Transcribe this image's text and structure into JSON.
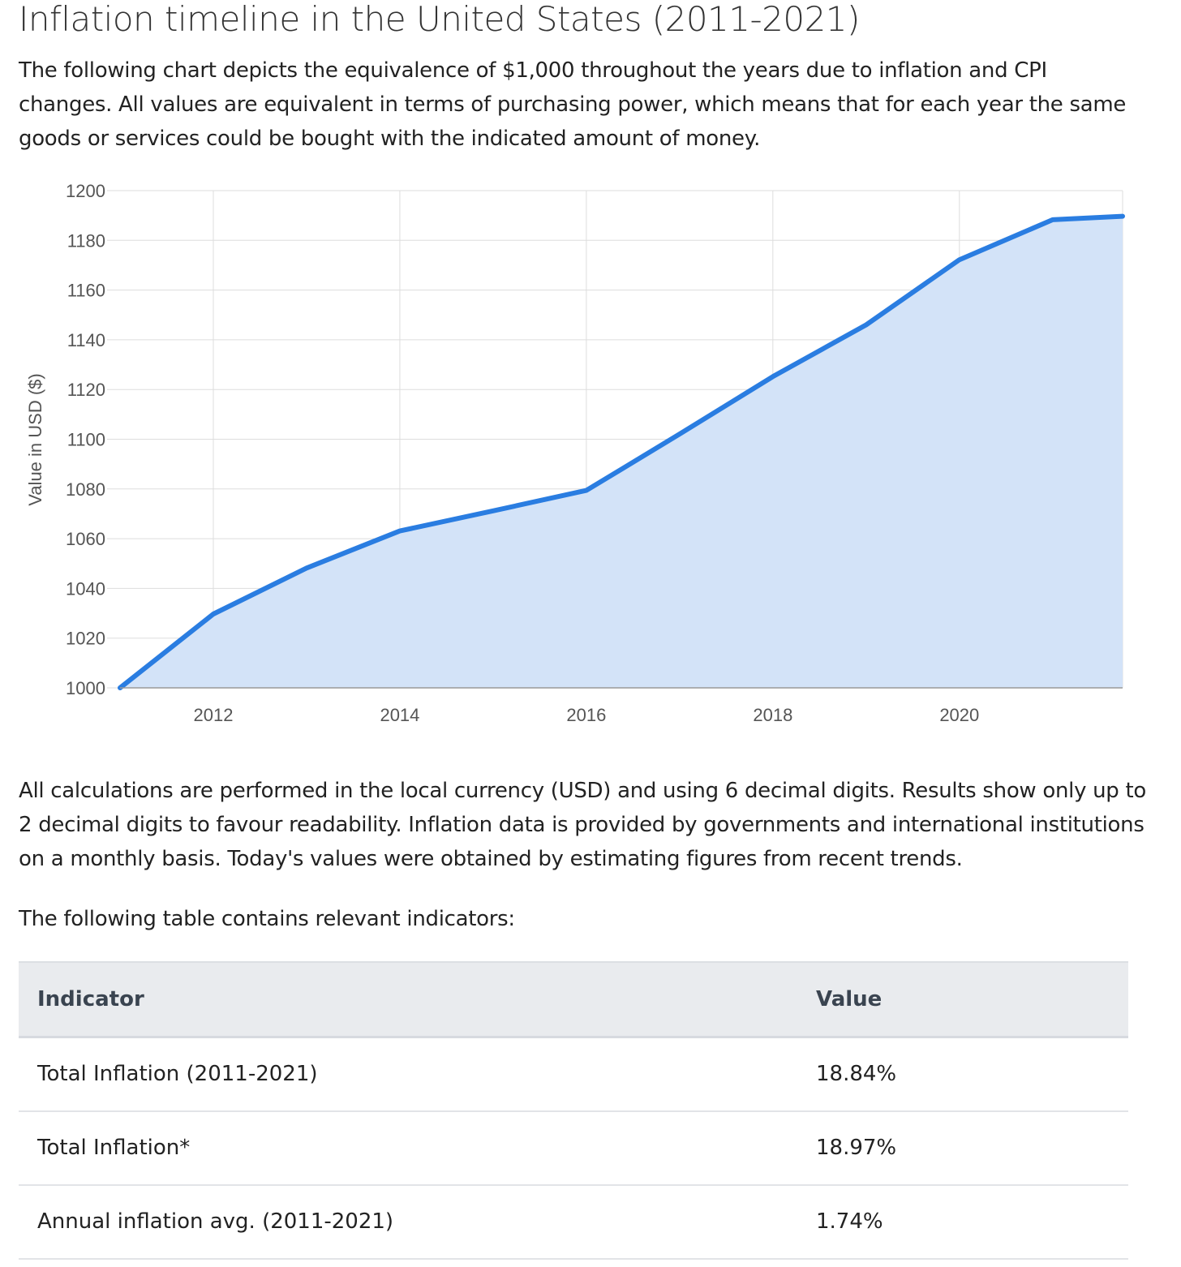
{
  "page": {
    "title": "Inflation timeline in the United States (2011-2021)",
    "intro": "The following chart depicts the equivalence of $1,000 throughout the years due to inflation and CPI changes. All values are equivalent in terms of purchasing power, which means that for each year the same goods or services could be bought with the indicated amount of money.",
    "notes": "All calculations are performed in the local currency (USD) and using 6 decimal digits. Results show only up to 2 decimal digits to favour readability. Inflation data is provided by governments and international institutions on a monthly basis. Today's values were obtained by estimating figures from recent trends.",
    "table_intro": "The following table contains relevant indicators:"
  },
  "chart_data": {
    "type": "area",
    "title": "",
    "xlabel": "",
    "ylabel": "Value in USD ($)",
    "x": [
      2011,
      2012,
      2013,
      2014,
      2015,
      2016,
      2017,
      2018,
      2019,
      2020,
      2021,
      2021.75
    ],
    "values": [
      1000,
      1029.7,
      1048.2,
      1063.1,
      1071.2,
      1079.4,
      1102.1,
      1125.2,
      1146.0,
      1172.2,
      1188.3,
      1189.7
    ],
    "xticks": [
      2012,
      2014,
      2016,
      2018,
      2020
    ],
    "yticks": [
      1000,
      1020,
      1040,
      1060,
      1080,
      1100,
      1120,
      1140,
      1160,
      1180,
      1200
    ],
    "xlim": [
      2011,
      2021.75
    ],
    "ylim": [
      1000,
      1200
    ],
    "grid": true,
    "legend": "none",
    "colors": {
      "line": "#2a7de1",
      "fill": "#d3e3f8",
      "grid": "#dddddd",
      "axis": "#999999",
      "tick_text": "#555555"
    }
  },
  "table": {
    "headers": [
      "Indicator",
      "Value"
    ],
    "rows": [
      [
        "Total Inflation (2011-2021)",
        "18.84%"
      ],
      [
        "Total Inflation*",
        "18.97%"
      ],
      [
        "Annual inflation avg. (2011-2021)",
        "1.74%"
      ]
    ]
  }
}
